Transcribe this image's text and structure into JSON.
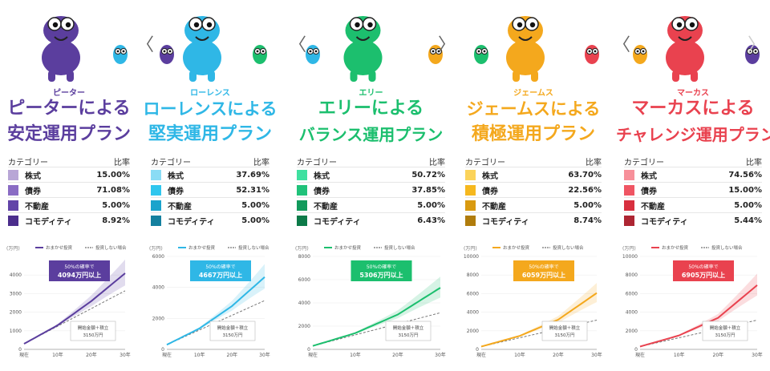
{
  "alloc_header": {
    "category": "カテゴリー",
    "ratio": "比率"
  },
  "chart_labels": {
    "unit": "(万円)",
    "legend_managed": "おまかせ投資",
    "legend_none": "投資しない場合",
    "note_line1": "開始金額＋積立",
    "note_line2": "3150万円",
    "callout_line1": "50%の確率で"
  },
  "nav": {
    "prev_glyph": "〈",
    "next_glyph": "〉"
  },
  "plans": [
    {
      "character": "ピーター",
      "title_line1": "ピーターによる",
      "title_line2": "安定運用プラン",
      "color": "#5b3e9e",
      "allocation": [
        {
          "name": "株式",
          "value": "15.00%",
          "color": "#b8a6d6"
        },
        {
          "name": "債券",
          "value": "71.08%",
          "color": "#8a6cc4"
        },
        {
          "name": "不動産",
          "value": "5.00%",
          "color": "#6244a8"
        },
        {
          "name": "コモディティ",
          "value": "8.92%",
          "color": "#4b2d8c"
        }
      ],
      "callout": "4094万円以上",
      "chart_data": {
        "type": "line",
        "x": [
          "現在",
          "10年",
          "20年",
          "30年"
        ],
        "series": [
          {
            "name": "おまかせ投資",
            "values": [
              300,
              1300,
              2600,
              4094
            ]
          },
          {
            "name": "投資しない場合",
            "values": [
              300,
              1250,
              2200,
              3150
            ]
          }
        ],
        "yticks": [
          0,
          1000,
          2000,
          3000,
          4000
        ],
        "ylim": [
          0,
          5000
        ]
      }
    },
    {
      "character": "ローレンス",
      "title_line1": "ローレンスによる",
      "title_line2": "堅実運用プラン",
      "color": "#2fb7e6",
      "allocation": [
        {
          "name": "株式",
          "value": "37.69%",
          "color": "#8adcf5"
        },
        {
          "name": "債券",
          "value": "52.31%",
          "color": "#2fc6ee"
        },
        {
          "name": "不動産",
          "value": "5.00%",
          "color": "#1aa3cc"
        },
        {
          "name": "コモディティ",
          "value": "5.00%",
          "color": "#14809f"
        }
      ],
      "callout": "4667万円以上",
      "chart_data": {
        "type": "line",
        "x": [
          "現在",
          "10年",
          "20年",
          "30年"
        ],
        "series": [
          {
            "name": "おまかせ投資",
            "values": [
              300,
              1350,
              2800,
              4667
            ]
          },
          {
            "name": "投資しない場合",
            "values": [
              300,
              1250,
              2200,
              3150
            ]
          }
        ],
        "yticks": [
          0,
          2000,
          4000,
          6000
        ],
        "ylim": [
          0,
          6000
        ]
      }
    },
    {
      "character": "エリー",
      "title_line1": "エリーによる",
      "title_line2": "バランス運用プラン",
      "color": "#1cbf6e",
      "allocation": [
        {
          "name": "株式",
          "value": "50.72%",
          "color": "#3fe0a0"
        },
        {
          "name": "債券",
          "value": "37.85%",
          "color": "#20c27a"
        },
        {
          "name": "不動産",
          "value": "5.00%",
          "color": "#129a5c"
        },
        {
          "name": "コモディティ",
          "value": "6.43%",
          "color": "#0c7a48"
        }
      ],
      "callout": "5306万円以上",
      "chart_data": {
        "type": "line",
        "x": [
          "現在",
          "10年",
          "20年",
          "30年"
        ],
        "series": [
          {
            "name": "おまかせ投資",
            "values": [
              300,
              1400,
              3000,
              5306
            ]
          },
          {
            "name": "投資しない場合",
            "values": [
              300,
              1250,
              2200,
              3150
            ]
          }
        ],
        "yticks": [
          0,
          2000,
          4000,
          6000,
          8000
        ],
        "ylim": [
          0,
          8000
        ]
      }
    },
    {
      "character": "ジェームス",
      "title_line1": "ジェームスによる",
      "title_line2": "積極運用プラン",
      "color": "#f4a81d",
      "allocation": [
        {
          "name": "株式",
          "value": "63.70%",
          "color": "#fbd35a"
        },
        {
          "name": "債券",
          "value": "22.56%",
          "color": "#f6b81e"
        },
        {
          "name": "不動産",
          "value": "5.00%",
          "color": "#d99a10"
        },
        {
          "name": "コモディティ",
          "value": "8.74%",
          "color": "#b07c0c"
        }
      ],
      "callout": "6059万円以上",
      "chart_data": {
        "type": "line",
        "x": [
          "現在",
          "10年",
          "20年",
          "30年"
        ],
        "series": [
          {
            "name": "おまかせ投資",
            "values": [
              300,
              1450,
              3200,
              6059
            ]
          },
          {
            "name": "投資しない場合",
            "values": [
              300,
              1250,
              2200,
              3150
            ]
          }
        ],
        "yticks": [
          0,
          2000,
          4000,
          6000,
          8000,
          10000
        ],
        "ylim": [
          0,
          10000
        ]
      }
    },
    {
      "character": "マーカス",
      "title_line1": "マーカスによる",
      "title_line2": "チャレンジ運用プラン",
      "color": "#e9424f",
      "allocation": [
        {
          "name": "株式",
          "value": "74.56%",
          "color": "#f7909a"
        },
        {
          "name": "債券",
          "value": "15.00%",
          "color": "#ef5563"
        },
        {
          "name": "不動産",
          "value": "5.00%",
          "color": "#d8303f"
        },
        {
          "name": "コモディティ",
          "value": "5.44%",
          "color": "#ad2532"
        }
      ],
      "callout": "6905万円以上",
      "chart_data": {
        "type": "line",
        "x": [
          "現在",
          "10年",
          "20年",
          "30年"
        ],
        "series": [
          {
            "name": "おまかせ投資",
            "values": [
              300,
              1500,
              3400,
              6905
            ]
          },
          {
            "name": "投資しない場合",
            "values": [
              300,
              1250,
              2200,
              3150
            ]
          }
        ],
        "yticks": [
          0,
          2000,
          4000,
          6000,
          8000,
          10000
        ],
        "ylim": [
          0,
          10000
        ]
      }
    }
  ]
}
